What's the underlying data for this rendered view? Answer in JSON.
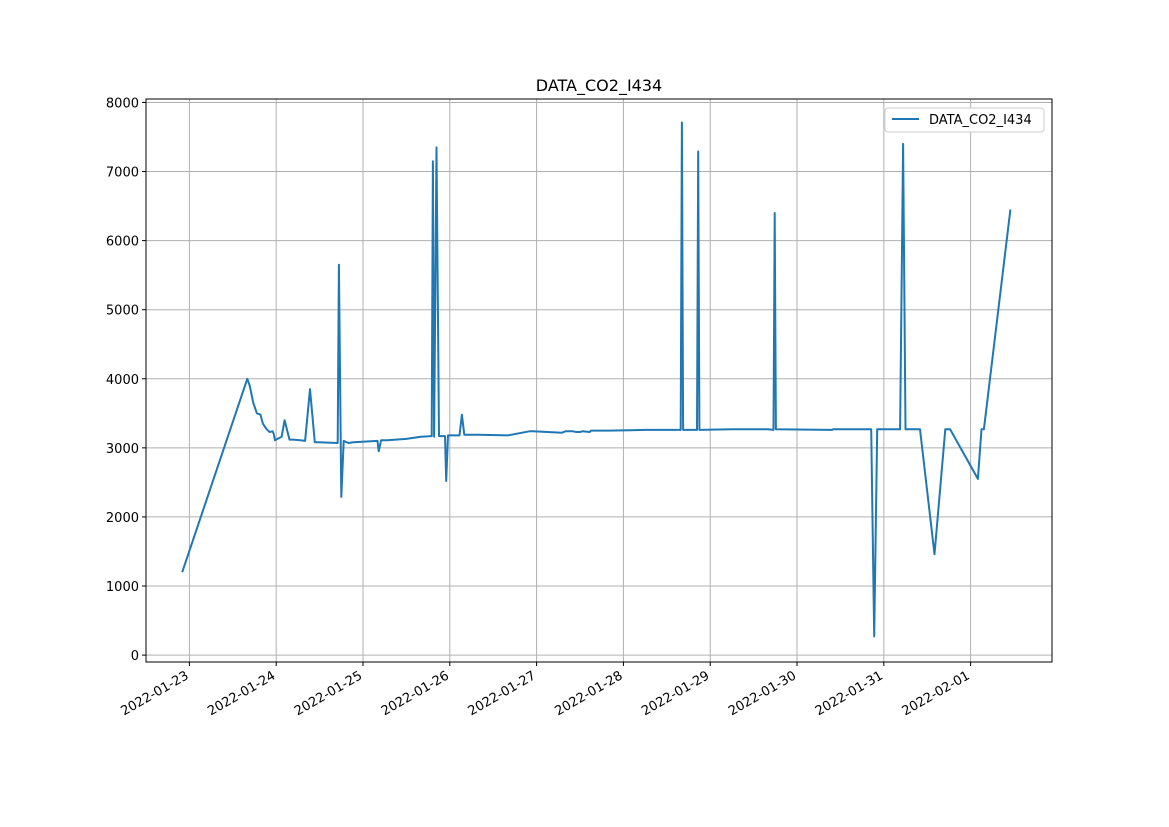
{
  "chart_data": {
    "type": "line",
    "title": "DATA_CO2_I434",
    "xlabel": "",
    "ylabel": "",
    "grid": true,
    "legend_position": "top-right",
    "x_tick_labels": [
      "2022-01-23",
      "2022-01-24",
      "2022-01-25",
      "2022-01-26",
      "2022-01-27",
      "2022-01-28",
      "2022-01-29",
      "2022-01-30",
      "2022-01-31",
      "2022-02-01"
    ],
    "y_ticks": [
      0,
      1000,
      2000,
      3000,
      4000,
      5000,
      6000,
      7000,
      8000
    ],
    "xlim": [
      "2022-01-22 12:00",
      "2022-02-01 22:30"
    ],
    "ylim": [
      -100,
      8050
    ],
    "series": [
      {
        "name": "DATA_CO2_I434",
        "color": "#1f77b4",
        "x": [
          "2022-01-22 22:00",
          "2022-01-23 16:00",
          "2022-01-23 16:40",
          "2022-01-23 17:40",
          "2022-01-23 18:40",
          "2022-01-23 19:40",
          "2022-01-23 20:20",
          "2022-01-23 21:20",
          "2022-01-23 22:10",
          "2022-01-23 23:00",
          "2022-01-23 23:20",
          "2022-01-23 23:40",
          "2022-01-24 01:30",
          "2022-01-24 02:20",
          "2022-01-24 03:40",
          "2022-01-24 04:40",
          "2022-01-24 06:40",
          "2022-01-24 08:00",
          "2022-01-24 09:20",
          "2022-01-24 10:40",
          "2022-01-24 11:00",
          "2022-01-24 11:40",
          "2022-01-24 17:00",
          "2022-01-24 17:20",
          "2022-01-24 18:00",
          "2022-01-24 18:40",
          "2022-01-24 20:00",
          "2022-01-24 21:20",
          "2022-01-25 04:00",
          "2022-01-25 04:20",
          "2022-01-25 05:00",
          "2022-01-25 06:40",
          "2022-01-25 12:00",
          "2022-01-25 16:00",
          "2022-01-25 19:00",
          "2022-01-25 19:20",
          "2022-01-25 19:40",
          "2022-01-25 20:20",
          "2022-01-25 21:00",
          "2022-01-25 22:40",
          "2022-01-25 23:00",
          "2022-01-25 23:30",
          "2022-01-26 02:40",
          "2022-01-26 03:20",
          "2022-01-26 04:00",
          "2022-01-26 08:00",
          "2022-01-26 16:00",
          "2022-01-26 22:00",
          "2022-01-26 23:00",
          "2022-01-27 07:00",
          "2022-01-27 08:00",
          "2022-01-27 10:00",
          "2022-01-27 11:00",
          "2022-01-27 12:00",
          "2022-01-27 12:40",
          "2022-01-27 14:40",
          "2022-01-27 15:00",
          "2022-01-27 15:30",
          "2022-01-27 20:00",
          "2022-01-28 06:00",
          "2022-01-28 12:00",
          "2022-01-28 13:00",
          "2022-01-28 13:20",
          "2022-01-28 13:40",
          "2022-01-28 15:50",
          "2022-01-28 16:10",
          "2022-01-28 16:30",
          "2022-01-28 20:20",
          "2022-01-28 20:40",
          "2022-01-28 21:00",
          "2022-01-29 06:00",
          "2022-01-29 16:00",
          "2022-01-29 17:30",
          "2022-01-29 17:50",
          "2022-01-29 18:10",
          "2022-01-30 09:00",
          "2022-01-30 09:40",
          "2022-01-30 10:00",
          "2022-01-30 11:00",
          "2022-01-30 12:00",
          "2022-01-30 12:40",
          "2022-01-30 13:20",
          "2022-01-30 20:30",
          "2022-01-30 21:20",
          "2022-01-30 22:10",
          "2022-01-31 01:30",
          "2022-01-31 02:10",
          "2022-01-31 03:30",
          "2022-01-31 04:30",
          "2022-01-31 05:20",
          "2022-01-31 06:00",
          "2022-01-31 10:00",
          "2022-01-31 14:00",
          "2022-01-31 17:00",
          "2022-01-31 17:40",
          "2022-01-31 18:20",
          "2022-02-01 02:00",
          "2022-02-01 03:00",
          "2022-02-01 03:40",
          "2022-02-01 11:00"
        ],
        "y": [
          1200,
          4000,
          3900,
          3650,
          3500,
          3480,
          3350,
          3270,
          3230,
          3240,
          3200,
          3110,
          3160,
          3400,
          3120,
          3120,
          3110,
          3100,
          3850,
          3080,
          3080,
          3080,
          3070,
          5650,
          2290,
          3100,
          3070,
          3080,
          3100,
          2950,
          3110,
          3110,
          3130,
          3160,
          3170,
          7150,
          3160,
          7350,
          3170,
          3170,
          2520,
          3180,
          3180,
          3480,
          3190,
          3190,
          3180,
          3240,
          3240,
          3220,
          3240,
          3240,
          3230,
          3230,
          3240,
          3230,
          3250,
          3250,
          3250,
          3260,
          3260,
          3260,
          3260,
          3260,
          3260,
          7710,
          3260,
          3260,
          7290,
          3260,
          3270,
          3270,
          3260,
          6400,
          3270,
          3260,
          3260,
          3270,
          3270,
          3270,
          3270,
          3270,
          3270,
          270,
          3270,
          3270,
          3270,
          3270,
          3270,
          7400,
          3270,
          3270,
          1460,
          3270,
          3270,
          3270,
          2550,
          3270,
          3270,
          6450
        ]
      }
    ]
  }
}
